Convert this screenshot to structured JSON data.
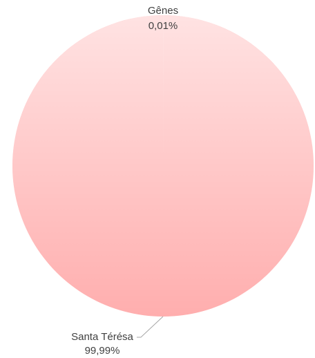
{
  "chart_data": {
    "type": "pie",
    "categories": [
      "Gênes",
      "Santa Térésa"
    ],
    "values": [
      0.01,
      99.99
    ],
    "value_labels": [
      "0,01%",
      "99,99%"
    ],
    "colors": [
      "#ffaeae",
      "#ffaeae"
    ]
  }
}
